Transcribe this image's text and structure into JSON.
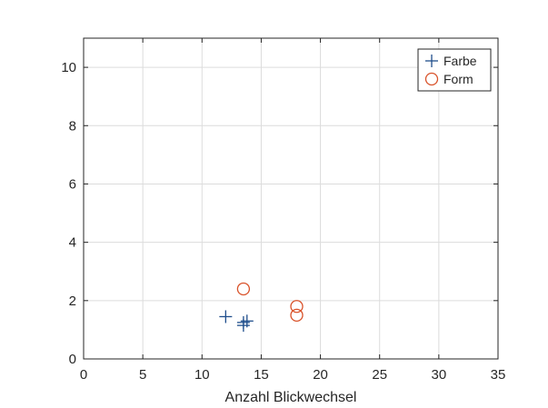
{
  "chart_data": {
    "type": "scatter",
    "xlabel": "Anzahl Blickwechsel",
    "ylabel": "",
    "title": "",
    "xlim": [
      0,
      35
    ],
    "ylim": [
      0,
      11
    ],
    "xticks": [
      0,
      5,
      10,
      15,
      20,
      25,
      30,
      35
    ],
    "yticks": [
      0,
      2,
      4,
      6,
      8,
      10
    ],
    "grid": true,
    "legend_position": "top-right",
    "series": [
      {
        "name": "Farbe",
        "marker": "plus",
        "color": "#1f4e8c",
        "x": [
          12.0,
          13.5,
          13.8,
          13.5
        ],
        "y": [
          1.45,
          1.25,
          1.3,
          1.15
        ]
      },
      {
        "name": "Form",
        "marker": "circle",
        "color": "#d9532b",
        "x": [
          13.5,
          18.0,
          18.0
        ],
        "y": [
          2.4,
          1.8,
          1.5
        ]
      }
    ]
  }
}
